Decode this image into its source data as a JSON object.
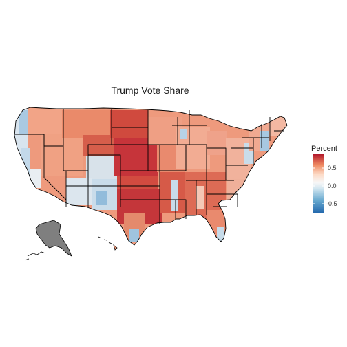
{
  "map": {
    "title": "Trump Vote Share",
    "colors": {
      "high": "#b2182b",
      "mid": "#f7f7f7",
      "low": "#2166ac",
      "missing": "#7f7f7f",
      "border": "#000000"
    },
    "regions": [
      {
        "name": "Alaska",
        "value": null
      }
    ]
  },
  "legend": {
    "title": "Percent",
    "ticks": [
      "0.5",
      "0.0",
      "-0.5"
    ]
  }
}
